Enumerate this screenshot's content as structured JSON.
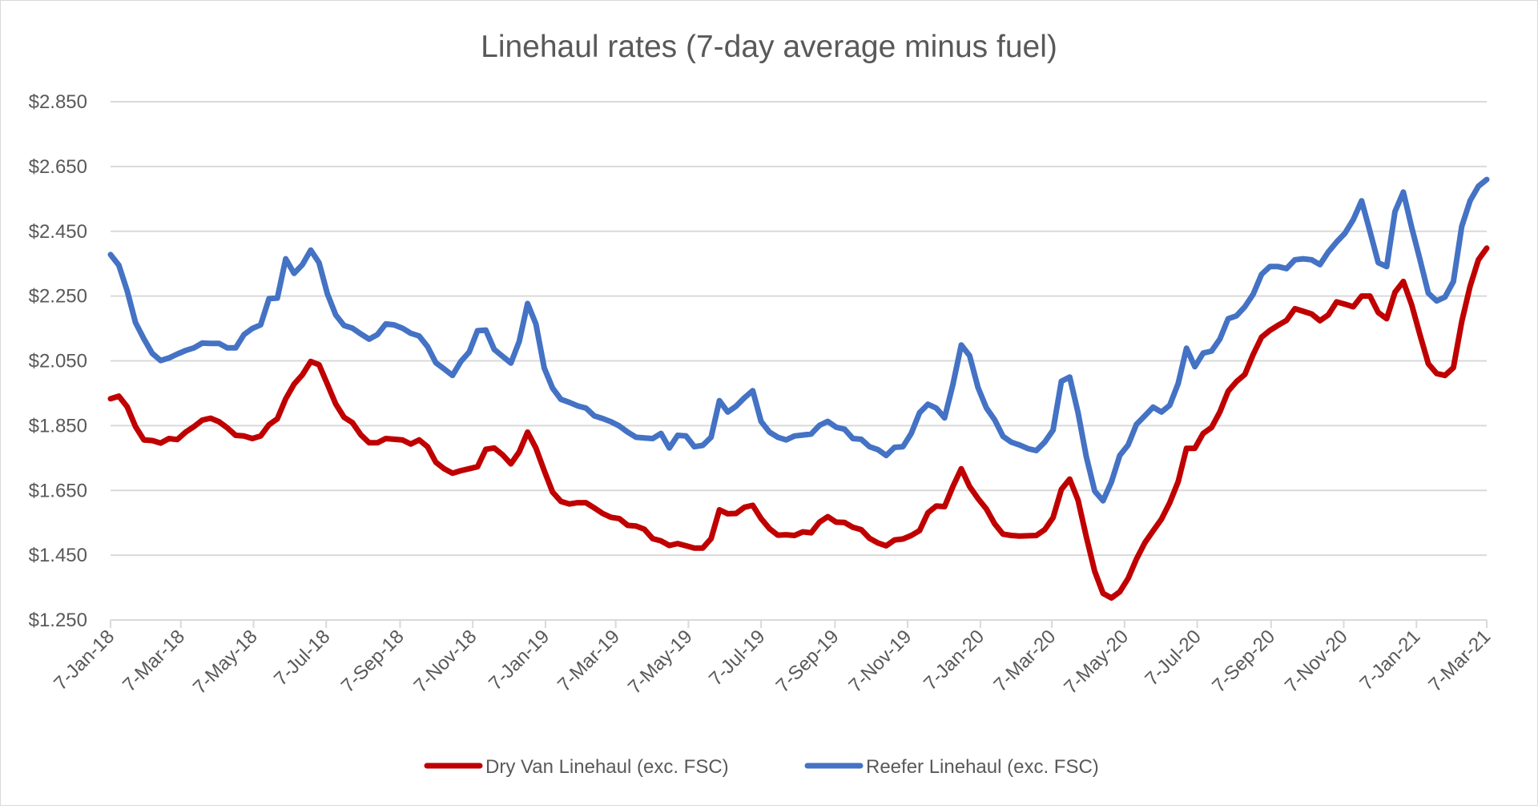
{
  "chart_data": {
    "type": "line",
    "title": "Linehaul rates (7-day average minus fuel)",
    "xlabel": "",
    "ylabel": "",
    "ylim": [
      1.25,
      2.85
    ],
    "y_tick_labels": [
      "$2.850",
      "$2.650",
      "$2.450",
      "$2.250",
      "$2.050",
      "$1.850",
      "$1.650",
      "$1.450",
      "$1.250"
    ],
    "y_ticks": [
      2.85,
      2.65,
      2.45,
      2.25,
      2.05,
      1.85,
      1.65,
      1.45,
      1.25
    ],
    "x_range": [
      "2018-01-07",
      "2021-03-07"
    ],
    "x_ticks": [
      "2018-01-07",
      "2018-03-07",
      "2018-05-07",
      "2018-07-07",
      "2018-09-07",
      "2018-11-07",
      "2019-01-07",
      "2019-03-07",
      "2019-05-07",
      "2019-07-07",
      "2019-09-07",
      "2019-11-07",
      "2020-01-07",
      "2020-03-07",
      "2020-05-07",
      "2020-07-07",
      "2020-09-07",
      "2020-11-07",
      "2021-01-07",
      "2021-03-07"
    ],
    "x_tick_labels": [
      "7-Jan-18",
      "7-Mar-18",
      "7-May-18",
      "7-Jul-18",
      "7-Sep-18",
      "7-Nov-18",
      "7-Jan-19",
      "7-Mar-19",
      "7-May-19",
      "7-Jul-19",
      "7-Sep-19",
      "7-Nov-19",
      "7-Jan-20",
      "7-Mar-20",
      "7-May-20",
      "7-Jul-20",
      "7-Sep-20",
      "7-Nov-20",
      "7-Jan-21",
      "7-Mar-21"
    ],
    "grid": "horizontal",
    "legend_position": "bottom",
    "x": [
      "2018-01-07",
      "2018-01-14",
      "2018-01-21",
      "2018-01-28",
      "2018-02-04",
      "2018-02-11",
      "2018-02-18",
      "2018-02-25",
      "2018-03-04",
      "2018-03-11",
      "2018-03-18",
      "2018-03-25",
      "2018-04-01",
      "2018-04-08",
      "2018-04-15",
      "2018-04-22",
      "2018-04-29",
      "2018-05-06",
      "2018-05-13",
      "2018-05-20",
      "2018-05-27",
      "2018-06-03",
      "2018-06-10",
      "2018-06-17",
      "2018-06-24",
      "2018-07-01",
      "2018-07-08",
      "2018-07-15",
      "2018-07-22",
      "2018-07-29",
      "2018-08-05",
      "2018-08-12",
      "2018-08-19",
      "2018-08-26",
      "2018-09-02",
      "2018-09-09",
      "2018-09-16",
      "2018-09-23",
      "2018-09-30",
      "2018-10-07",
      "2018-10-14",
      "2018-10-21",
      "2018-10-28",
      "2018-11-04",
      "2018-11-11",
      "2018-11-18",
      "2018-11-25",
      "2018-12-02",
      "2018-12-09",
      "2018-12-16",
      "2018-12-23",
      "2018-12-30",
      "2019-01-06",
      "2019-01-13",
      "2019-01-20",
      "2019-01-27",
      "2019-02-03",
      "2019-02-10",
      "2019-02-17",
      "2019-02-24",
      "2019-03-03",
      "2019-03-10",
      "2019-03-17",
      "2019-03-24",
      "2019-03-31",
      "2019-04-07",
      "2019-04-14",
      "2019-04-21",
      "2019-04-28",
      "2019-05-05",
      "2019-05-12",
      "2019-05-19",
      "2019-05-26",
      "2019-06-02",
      "2019-06-09",
      "2019-06-16",
      "2019-06-23",
      "2019-06-30",
      "2019-07-07",
      "2019-07-14",
      "2019-07-21",
      "2019-07-28",
      "2019-08-04",
      "2019-08-11",
      "2019-08-18",
      "2019-08-25",
      "2019-09-01",
      "2019-09-08",
      "2019-09-15",
      "2019-09-22",
      "2019-09-29",
      "2019-10-06",
      "2019-10-13",
      "2019-10-20",
      "2019-10-27",
      "2019-11-03",
      "2019-11-10",
      "2019-11-17",
      "2019-11-24",
      "2019-12-01",
      "2019-12-08",
      "2019-12-15",
      "2019-12-22",
      "2019-12-29",
      "2020-01-05",
      "2020-01-12",
      "2020-01-19",
      "2020-01-26",
      "2020-02-02",
      "2020-02-09",
      "2020-02-16",
      "2020-02-23",
      "2020-03-01",
      "2020-03-08",
      "2020-03-15",
      "2020-03-22",
      "2020-03-29",
      "2020-04-05",
      "2020-04-12",
      "2020-04-19",
      "2020-04-26",
      "2020-05-03",
      "2020-05-10",
      "2020-05-17",
      "2020-05-24",
      "2020-05-31",
      "2020-06-07",
      "2020-06-14",
      "2020-06-21",
      "2020-06-28",
      "2020-07-05",
      "2020-07-12",
      "2020-07-19",
      "2020-07-26",
      "2020-08-02",
      "2020-08-09",
      "2020-08-16",
      "2020-08-23",
      "2020-08-30",
      "2020-09-06",
      "2020-09-13",
      "2020-09-20",
      "2020-09-27",
      "2020-10-04",
      "2020-10-11",
      "2020-10-18",
      "2020-10-25",
      "2020-11-01",
      "2020-11-08",
      "2020-11-15",
      "2020-11-22",
      "2020-11-29",
      "2020-12-06",
      "2020-12-13",
      "2020-12-20",
      "2020-12-27",
      "2021-01-03",
      "2021-01-10",
      "2021-01-17",
      "2021-01-24",
      "2021-01-31",
      "2021-02-07",
      "2021-02-14",
      "2021-02-21",
      "2021-02-28",
      "2021-03-07"
    ],
    "series": [
      {
        "name": "Dry Van Linehaul (exc. FSC)",
        "color": "#c00000",
        "values": [
          1.933,
          1.941,
          1.908,
          1.847,
          1.806,
          1.804,
          1.796,
          1.81,
          1.807,
          1.83,
          1.847,
          1.867,
          1.873,
          1.862,
          1.843,
          1.82,
          1.818,
          1.81,
          1.818,
          1.853,
          1.871,
          1.933,
          1.978,
          2.007,
          2.048,
          2.038,
          1.978,
          1.917,
          1.876,
          1.859,
          1.822,
          1.797,
          1.797,
          1.81,
          1.808,
          1.806,
          1.793,
          1.806,
          1.785,
          1.737,
          1.717,
          1.703,
          1.711,
          1.717,
          1.723,
          1.777,
          1.781,
          1.76,
          1.732,
          1.769,
          1.83,
          1.781,
          1.711,
          1.645,
          1.616,
          1.608,
          1.612,
          1.612,
          1.596,
          1.579,
          1.567,
          1.563,
          1.542,
          1.54,
          1.53,
          1.501,
          1.494,
          1.48,
          1.486,
          1.479,
          1.472,
          1.472,
          1.501,
          1.59,
          1.578,
          1.579,
          1.598,
          1.604,
          1.563,
          1.532,
          1.512,
          1.513,
          1.511,
          1.522,
          1.519,
          1.552,
          1.569,
          1.552,
          1.551,
          1.536,
          1.529,
          1.502,
          1.488,
          1.479,
          1.497,
          1.5,
          1.511,
          1.526,
          1.581,
          1.602,
          1.6,
          1.662,
          1.717,
          1.662,
          1.625,
          1.593,
          1.547,
          1.515,
          1.511,
          1.509,
          1.51,
          1.511,
          1.529,
          1.566,
          1.653,
          1.685,
          1.62,
          1.506,
          1.4,
          1.332,
          1.318,
          1.337,
          1.378,
          1.438,
          1.488,
          1.525,
          1.561,
          1.612,
          1.677,
          1.78,
          1.78,
          1.826,
          1.844,
          1.892,
          1.956,
          1.986,
          2.008,
          2.07,
          2.123,
          2.144,
          2.16,
          2.175,
          2.211,
          2.203,
          2.195,
          2.174,
          2.192,
          2.232,
          2.225,
          2.217,
          2.25,
          2.25,
          2.199,
          2.18,
          2.262,
          2.295,
          2.223,
          2.13,
          2.041,
          2.011,
          2.005,
          2.029,
          2.171,
          2.28,
          2.362,
          2.398
        ]
      },
      {
        "name": "Reefer Linehaul (exc. FSC)",
        "color": "#4472c4",
        "values": [
          2.378,
          2.345,
          2.266,
          2.168,
          2.118,
          2.073,
          2.051,
          2.059,
          2.071,
          2.082,
          2.09,
          2.105,
          2.104,
          2.104,
          2.09,
          2.09,
          2.131,
          2.15,
          2.161,
          2.242,
          2.244,
          2.365,
          2.32,
          2.347,
          2.392,
          2.353,
          2.257,
          2.192,
          2.159,
          2.151,
          2.133,
          2.117,
          2.131,
          2.164,
          2.161,
          2.151,
          2.135,
          2.127,
          2.094,
          2.044,
          2.025,
          2.005,
          2.048,
          2.077,
          2.143,
          2.145,
          2.085,
          2.064,
          2.043,
          2.11,
          2.227,
          2.164,
          2.028,
          1.966,
          1.931,
          1.922,
          1.911,
          1.904,
          1.88,
          1.872,
          1.862,
          1.849,
          1.83,
          1.814,
          1.812,
          1.81,
          1.826,
          1.781,
          1.82,
          1.818,
          1.785,
          1.789,
          1.814,
          1.927,
          1.892,
          1.91,
          1.936,
          1.958,
          1.863,
          1.83,
          1.814,
          1.806,
          1.818,
          1.821,
          1.824,
          1.851,
          1.863,
          1.845,
          1.839,
          1.81,
          1.808,
          1.785,
          1.776,
          1.758,
          1.783,
          1.785,
          1.826,
          1.89,
          1.916,
          1.904,
          1.874,
          1.977,
          2.099,
          2.066,
          1.968,
          1.905,
          1.868,
          1.817,
          1.799,
          1.79,
          1.779,
          1.773,
          1.799,
          1.836,
          1.987,
          2.0,
          1.89,
          1.753,
          1.648,
          1.618,
          1.676,
          1.758,
          1.79,
          1.854,
          1.88,
          1.907,
          1.892,
          1.913,
          1.98,
          2.089,
          2.032,
          2.074,
          2.08,
          2.117,
          2.18,
          2.189,
          2.217,
          2.256,
          2.317,
          2.341,
          2.341,
          2.335,
          2.362,
          2.365,
          2.362,
          2.347,
          2.386,
          2.417,
          2.444,
          2.486,
          2.544,
          2.45,
          2.353,
          2.341,
          2.511,
          2.571,
          2.462,
          2.362,
          2.259,
          2.235,
          2.247,
          2.295,
          2.465,
          2.544,
          2.589,
          2.61
        ]
      }
    ]
  },
  "colors": {
    "gridline": "#d9d9d9",
    "text": "#595959"
  }
}
